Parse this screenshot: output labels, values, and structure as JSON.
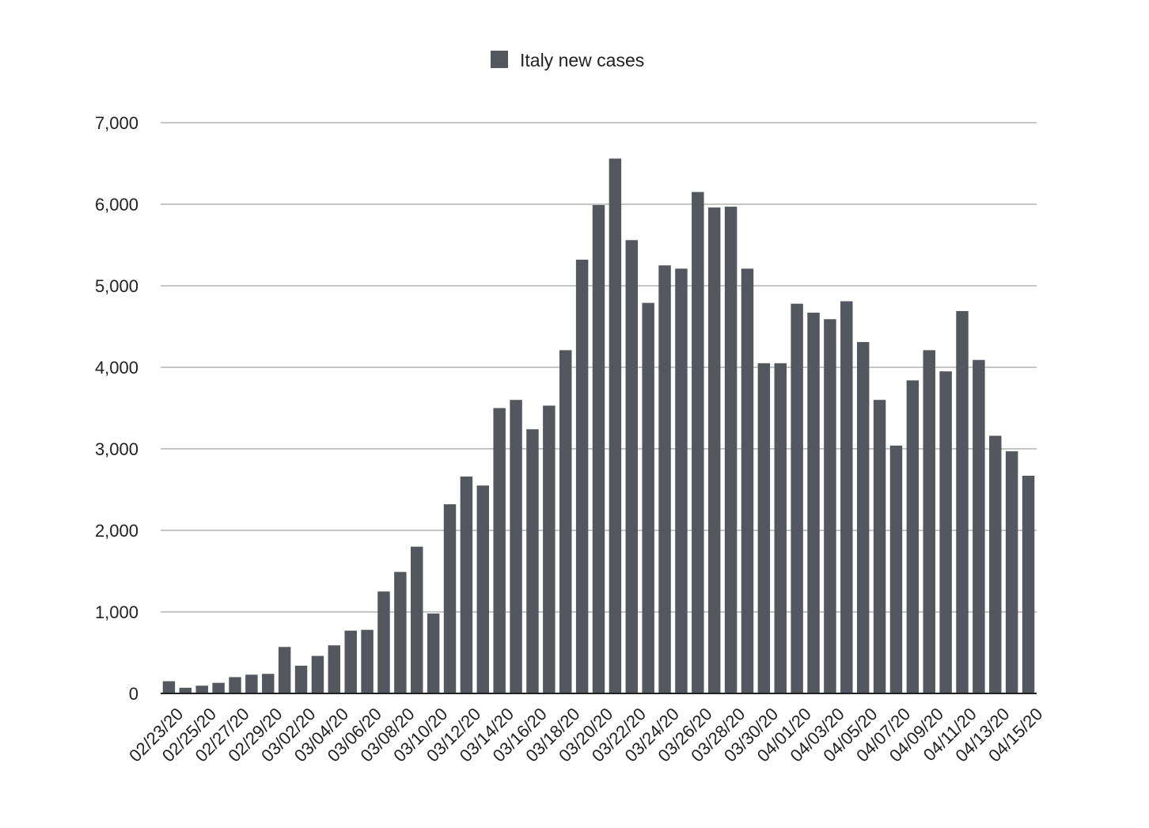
{
  "chart_data": {
    "type": "bar",
    "title": "",
    "xlabel": "",
    "ylabel": "",
    "ylim": [
      0,
      7000
    ],
    "yticks": [
      0,
      1000,
      2000,
      3000,
      4000,
      5000,
      6000,
      7000
    ],
    "ytick_labels": [
      "0",
      "1,000",
      "2,000",
      "3,000",
      "4,000",
      "5,000",
      "6,000",
      "7,000"
    ],
    "grid": true,
    "legend": "top-center",
    "categories": [
      "02/23/20",
      "02/24/20",
      "02/25/20",
      "02/26/20",
      "02/27/20",
      "02/28/20",
      "02/29/20",
      "03/01/20",
      "03/02/20",
      "03/03/20",
      "03/04/20",
      "03/05/20",
      "03/06/20",
      "03/07/20",
      "03/08/20",
      "03/09/20",
      "03/10/20",
      "03/11/20",
      "03/12/20",
      "03/13/20",
      "03/14/20",
      "03/15/20",
      "03/16/20",
      "03/17/20",
      "03/18/20",
      "03/19/20",
      "03/20/20",
      "03/21/20",
      "03/22/20",
      "03/23/20",
      "03/24/20",
      "03/25/20",
      "03/26/20",
      "03/27/20",
      "03/28/20",
      "03/29/20",
      "03/30/20",
      "03/31/20",
      "04/01/20",
      "04/02/20",
      "04/03/20",
      "04/04/20",
      "04/05/20",
      "04/06/20",
      "04/07/20",
      "04/08/20",
      "04/09/20",
      "04/10/20",
      "04/11/20",
      "04/12/20",
      "04/13/20",
      "04/14/20",
      "04/15/20"
    ],
    "xtick_labels": [
      "02/23/20",
      "02/25/20",
      "02/27/20",
      "02/29/20",
      "03/02/20",
      "03/04/20",
      "03/06/20",
      "03/08/20",
      "03/10/20",
      "03/12/20",
      "03/14/20",
      "03/16/20",
      "03/18/20",
      "03/20/20",
      "03/22/20",
      "03/24/20",
      "03/26/20",
      "03/28/20",
      "03/30/20",
      "04/01/20",
      "04/03/20",
      "04/05/20",
      "04/07/20",
      "04/09/20",
      "04/11/20",
      "04/13/20",
      "04/15/20"
    ],
    "series": [
      {
        "name": "Italy new cases",
        "color": "#54575e",
        "values": [
          150,
          70,
          95,
          130,
          200,
          230,
          240,
          570,
          340,
          460,
          590,
          770,
          780,
          1250,
          1490,
          1800,
          980,
          2320,
          2660,
          2550,
          3500,
          3600,
          3240,
          3530,
          4210,
          5320,
          5990,
          6560,
          5560,
          4790,
          5250,
          5210,
          6150,
          5960,
          5970,
          5210,
          4050,
          4050,
          4780,
          4670,
          4590,
          4810,
          4310,
          3600,
          3040,
          3840,
          4210,
          3950,
          4690,
          4090,
          3160,
          2970,
          2670
        ]
      }
    ]
  }
}
